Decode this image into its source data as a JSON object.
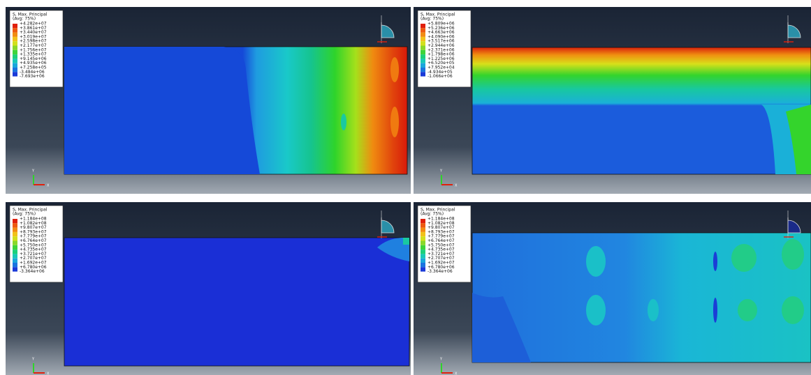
{
  "panels": [
    {
      "title": "S, Max. Principal",
      "subtitle": "(Avg: 75%)",
      "legend": [
        "+4.282e+07",
        "+3.861e+07",
        "+3.440e+07",
        "+3.019e+07",
        "+2.598e+07",
        "+2.177e+07",
        "+1.756e+07",
        "+1.335e+07",
        "+9.145e+06",
        "+4.935e+06",
        "+7.258e+05",
        "-3.484e+06",
        "-7.693e+06"
      ],
      "triad": [
        "Y",
        "X"
      ]
    },
    {
      "title": "S, Max. Principal",
      "subtitle": "(Avg: 75%)",
      "legend": [
        "+5.809e+06",
        "+5.236e+06",
        "+4.663e+06",
        "+4.090e+06",
        "+3.517e+06",
        "+2.944e+06",
        "+2.371e+06",
        "+1.798e+06",
        "+1.225e+06",
        "+6.520e+05",
        "+7.952e+04",
        "-4.934e+05",
        "-1.066e+06"
      ],
      "triad": [
        "Y",
        "X"
      ]
    },
    {
      "title": "S, Max. Principal",
      "subtitle": "(Avg: 75%)",
      "legend": [
        "+1.184e+08",
        "+1.082e+08",
        "+9.807e+07",
        "+8.793e+07",
        "+7.779e+07",
        "+6.764e+07",
        "+5.750e+07",
        "+4.735e+07",
        "+3.721e+07",
        "+2.707e+07",
        "+1.692e+07",
        "+6.780e+06",
        "-3.364e+06"
      ],
      "triad": [
        "Y",
        "X"
      ]
    },
    {
      "title": "S, Max. Principal",
      "subtitle": "(Avg: 75%)",
      "legend": [
        "+1.184e+08",
        "+1.082e+08",
        "+9.807e+07",
        "+8.793e+07",
        "+7.779e+07",
        "+6.764e+07",
        "+5.750e+07",
        "+4.735e+07",
        "+3.721e+07",
        "+2.707e+07",
        "+1.692e+07",
        "+6.780e+06",
        "-3.364e+06"
      ],
      "triad": [
        "Y",
        "X"
      ]
    }
  ]
}
